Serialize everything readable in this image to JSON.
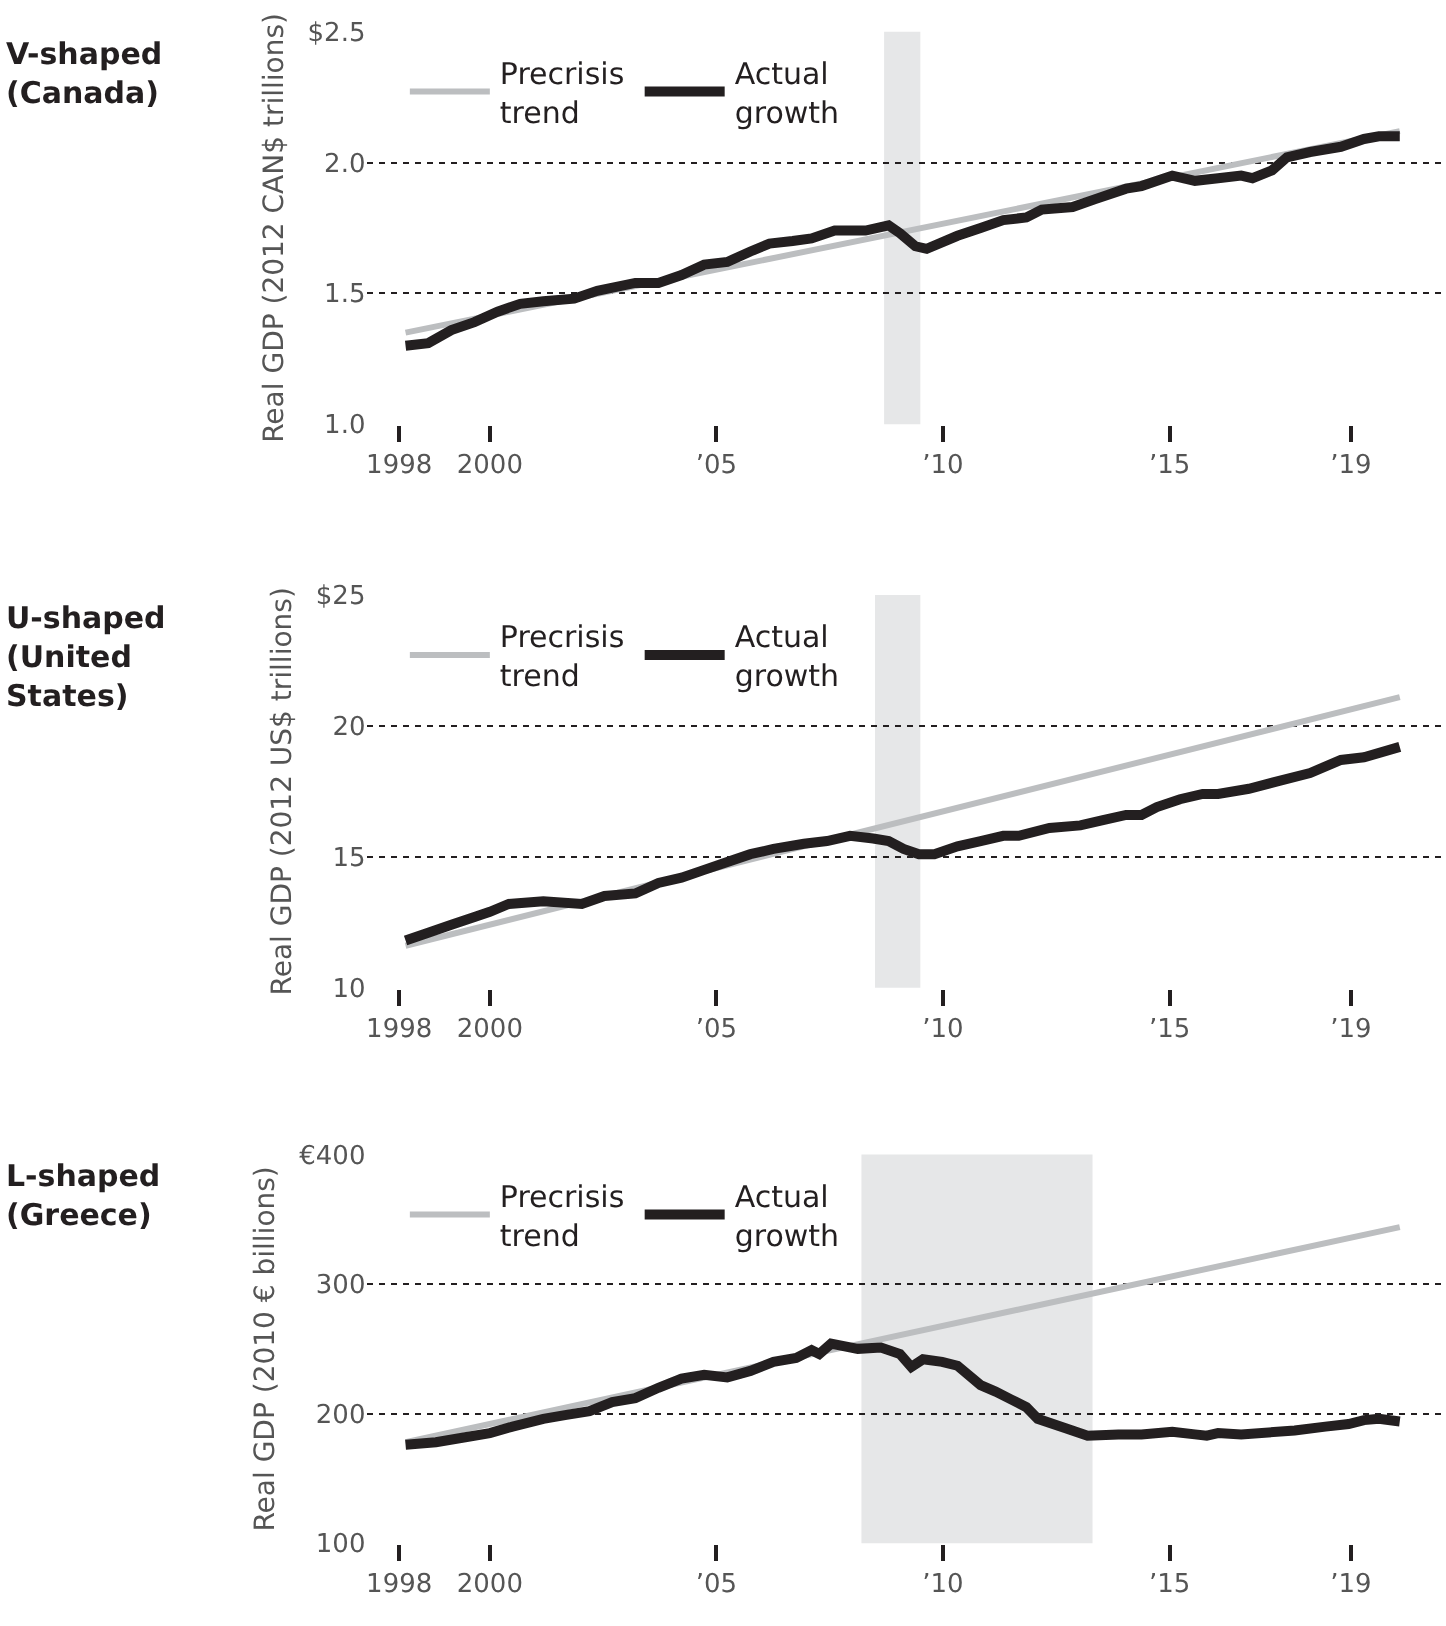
{
  "chart_data": [
    {
      "type": "line",
      "title": "V-shaped (Canada)",
      "ylabel": "Real GDP (2012 CAN$ trillions)",
      "legend": "top left",
      "grid": "y",
      "line_style": "solid",
      "xlim": [
        1997.3,
        2021.1
      ],
      "xticks": [
        1998,
        2000,
        {
          "value": 2005,
          "label": "’05"
        },
        {
          "value": 2010,
          "label": "’10"
        },
        {
          "value": 2015,
          "label": "’15"
        },
        {
          "value": 2019,
          "label": "’19"
        }
      ],
      "ylim": [
        1.0,
        2.5
      ],
      "yticks": [
        {
          "value": 1.0,
          "label": "1.0"
        },
        1.5,
        {
          "value": 2.0,
          "label": "2.0"
        },
        {
          "value": 2.5,
          "label": "$2.5"
        }
      ],
      "bands": [
        {
          "axis": "x",
          "from": 2008.7,
          "to": 2009.5,
          "color": "#e6e7e8"
        }
      ],
      "series": [
        {
          "name": "Precrisis trend",
          "color": "#bcbec0",
          "x": [
            1998.14,
            2020.08
          ],
          "values": [
            1.35,
            2.12
          ]
        },
        {
          "name": "Actual growth",
          "color": "#231f20",
          "x": [
            1998.14,
            1998.64,
            1999.15,
            1999.66,
            2000.17,
            2000.67,
            2001.18,
            2001.86,
            2002.37,
            2003.21,
            2003.72,
            2004.23,
            2004.73,
            2005.24,
            2005.75,
            2006.17,
            2006.68,
            2007.1,
            2007.61,
            2008.29,
            2008.8,
            2009.05,
            2009.39,
            2009.64,
            2010.32,
            2010.83,
            2011.33,
            2011.84,
            2012.18,
            2012.86,
            2013.36,
            2014.04,
            2014.38,
            2015.06,
            2015.56,
            2016.07,
            2016.58,
            2016.83,
            2017.26,
            2017.59,
            2018.1,
            2018.78,
            2019.29,
            2019.62,
            2020.08
          ],
          "values": [
            1.3,
            1.31,
            1.36,
            1.39,
            1.43,
            1.46,
            1.47,
            1.48,
            1.51,
            1.54,
            1.54,
            1.57,
            1.61,
            1.62,
            1.66,
            1.69,
            1.7,
            1.71,
            1.74,
            1.74,
            1.76,
            1.73,
            1.68,
            1.67,
            1.72,
            1.75,
            1.78,
            1.79,
            1.82,
            1.83,
            1.86,
            1.9,
            1.91,
            1.95,
            1.93,
            1.94,
            1.95,
            1.94,
            1.97,
            2.02,
            2.04,
            2.06,
            2.09,
            2.1,
            2.1
          ]
        }
      ]
    },
    {
      "type": "line",
      "title": "U-shaped (United States)",
      "ylabel": "Real GDP (2012 US$ trillions)",
      "legend": "top left",
      "grid": "y",
      "line_style": "solid",
      "xlim": [
        1997.3,
        2021.1
      ],
      "xticks": [
        1998,
        2000,
        {
          "value": 2005,
          "label": "’05"
        },
        {
          "value": 2010,
          "label": "’10"
        },
        {
          "value": 2015,
          "label": "’15"
        },
        {
          "value": 2019,
          "label": "’19"
        }
      ],
      "ylim": [
        10,
        25
      ],
      "yticks": [
        10,
        15,
        20,
        {
          "value": 25,
          "label": "$25"
        }
      ],
      "bands": [
        {
          "axis": "x",
          "from": 2008.5,
          "to": 2009.5,
          "color": "#e6e7e8"
        }
      ],
      "series": [
        {
          "name": "Precrisis trend",
          "color": "#bcbec0",
          "x": [
            1998.14,
            2020.08
          ],
          "values": [
            11.6,
            21.1
          ]
        },
        {
          "name": "Actual growth",
          "color": "#231f20",
          "x": [
            1998.14,
            1998.64,
            1999.15,
            1999.66,
            2000.0,
            2000.42,
            2001.18,
            2002.03,
            2002.53,
            2003.21,
            2003.72,
            2004.23,
            2004.73,
            2005.24,
            2005.75,
            2006.26,
            2006.93,
            2007.44,
            2007.95,
            2008.46,
            2008.8,
            2009.13,
            2009.47,
            2009.81,
            2010.32,
            2010.83,
            2011.33,
            2011.67,
            2012.35,
            2013.03,
            2013.53,
            2014.04,
            2014.38,
            2014.72,
            2015.23,
            2015.73,
            2016.07,
            2016.75,
            2017.42,
            2018.1,
            2018.78,
            2019.29,
            2020.08
          ],
          "values": [
            11.8,
            12.1,
            12.4,
            12.7,
            12.9,
            13.2,
            13.3,
            13.2,
            13.5,
            13.6,
            14.0,
            14.2,
            14.5,
            14.8,
            15.1,
            15.3,
            15.5,
            15.6,
            15.8,
            15.7,
            15.6,
            15.3,
            15.1,
            15.1,
            15.4,
            15.6,
            15.8,
            15.8,
            16.1,
            16.2,
            16.4,
            16.6,
            16.6,
            16.9,
            17.2,
            17.4,
            17.4,
            17.6,
            17.9,
            18.2,
            18.7,
            18.8,
            19.2
          ]
        }
      ]
    },
    {
      "type": "line",
      "title": "L-shaped (Greece)",
      "ylabel": "Real GDP (2010 € billions)",
      "legend": "top left",
      "grid": "y",
      "line_style": "solid",
      "xlim": [
        1997.3,
        2021.1
      ],
      "xticks": [
        1998,
        2000,
        {
          "value": 2005,
          "label": "’05"
        },
        {
          "value": 2010,
          "label": "’10"
        },
        {
          "value": 2015,
          "label": "’15"
        },
        {
          "value": 2019,
          "label": "’19"
        }
      ],
      "ylim": [
        100,
        400
      ],
      "yticks": [
        100,
        200,
        300,
        {
          "value": 400,
          "label": "€400"
        }
      ],
      "bands": [
        {
          "axis": "x",
          "from": 2008.2,
          "to": 2013.3,
          "color": "#e6e7e8"
        }
      ],
      "series": [
        {
          "name": "Precrisis trend",
          "color": "#bcbec0",
          "x": [
            1998.14,
            2020.08
          ],
          "values": [
            178,
            344
          ]
        },
        {
          "name": "Actual growth",
          "color": "#231f20",
          "x": [
            1998.14,
            1998.81,
            1999.49,
            2000.0,
            2000.5,
            2001.18,
            2001.69,
            2002.2,
            2002.7,
            2003.21,
            2003.72,
            2004.23,
            2004.73,
            2005.24,
            2005.75,
            2006.26,
            2006.76,
            2007.1,
            2007.27,
            2007.53,
            2008.12,
            2008.63,
            2009.05,
            2009.3,
            2009.56,
            2009.98,
            2010.32,
            2010.83,
            2011.16,
            2011.5,
            2011.84,
            2012.09,
            2012.69,
            2013.19,
            2013.87,
            2014.38,
            2015.06,
            2015.56,
            2015.82,
            2016.07,
            2016.58,
            2017.76,
            2018.44,
            2018.95,
            2019.29,
            2019.62,
            2020.08
          ],
          "values": [
            176,
            178,
            182,
            185,
            190,
            196,
            199,
            202,
            209,
            212,
            220,
            227,
            230,
            228,
            233,
            240,
            243,
            249,
            246,
            254,
            250,
            251,
            246,
            236,
            242,
            240,
            237,
            222,
            217,
            211,
            205,
            196,
            189,
            183,
            184,
            184,
            186,
            184,
            183,
            185,
            184,
            187,
            190,
            192,
            195,
            196,
            194
          ]
        }
      ]
    }
  ]
}
